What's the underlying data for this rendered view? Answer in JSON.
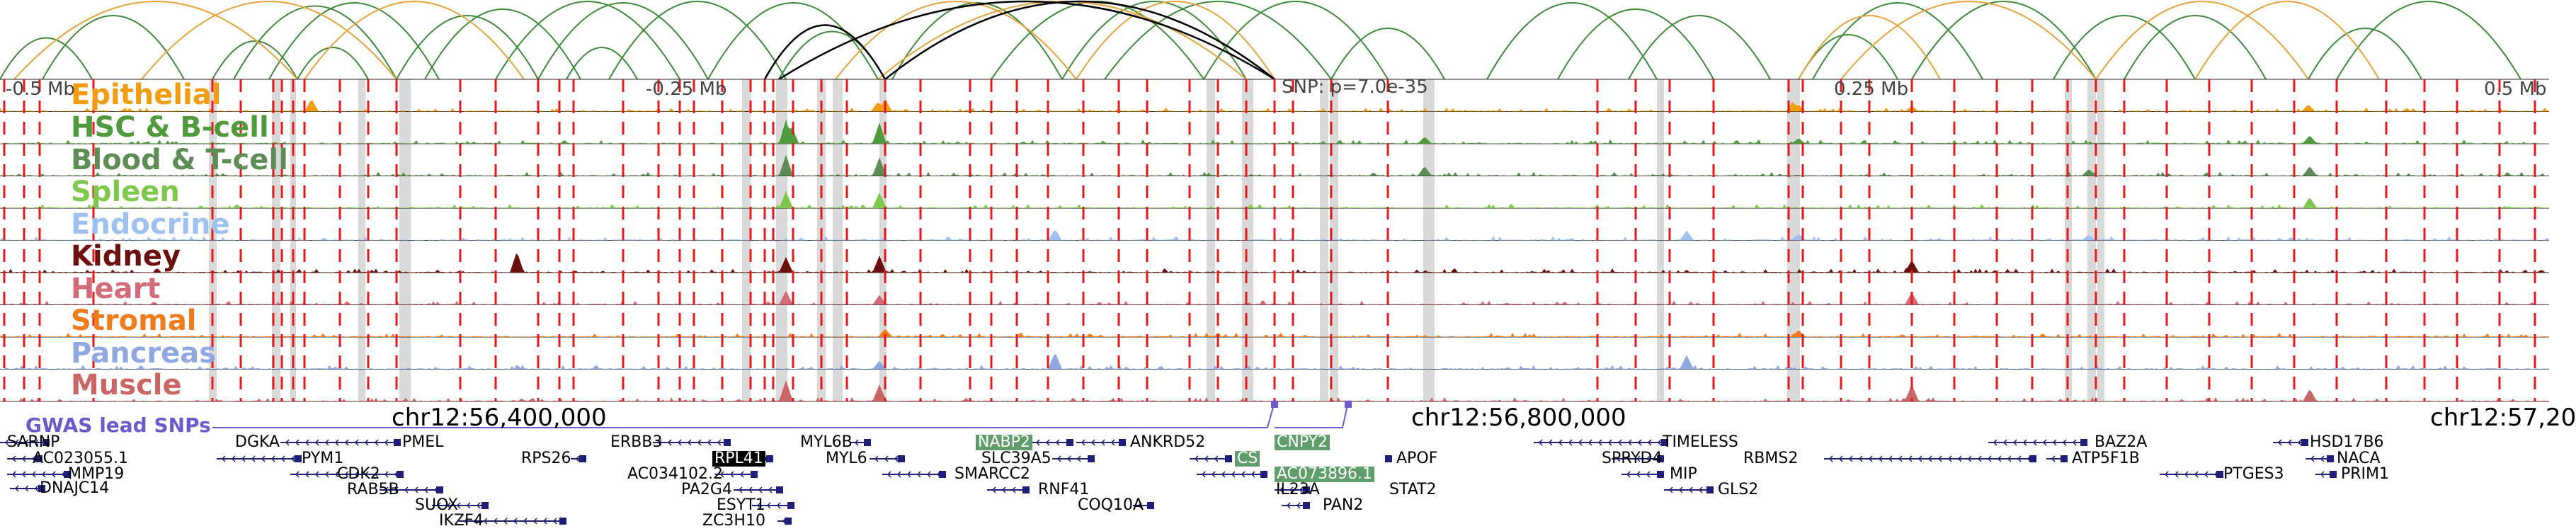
{
  "colors": {
    "epithelial": "#f39c12",
    "hsc_bcell": "#4f9a3a",
    "blood_tcell": "#5e8c55",
    "spleen": "#7ec84b",
    "endocrine": "#9ec1f0",
    "kidney": "#6b0f0f",
    "heart": "#d46b7a",
    "stromal": "#f07b1a",
    "pancreas": "#8fa8e0",
    "muscle": "#c96565",
    "snp_line": "#e31a1c",
    "highlight_band": "#d9d9d9",
    "gwas": "#6a5acd",
    "gene": "#1f1f7a",
    "arc_green": "#3d8a3a",
    "arc_orange": "#e8a23c",
    "arc_black": "#000000"
  },
  "tracks": [
    {
      "key": "epithelial",
      "label": "Epithelial"
    },
    {
      "key": "hsc_bcell",
      "label": "HSC & B-cell"
    },
    {
      "key": "blood_tcell",
      "label": "Blood & T-cell"
    },
    {
      "key": "spleen",
      "label": "Spleen"
    },
    {
      "key": "endocrine",
      "label": "Endocrine"
    },
    {
      "key": "kidney",
      "label": "Kidney"
    },
    {
      "key": "heart",
      "label": "Heart"
    },
    {
      "key": "stromal",
      "label": "Stromal"
    },
    {
      "key": "pancreas",
      "label": "Pancreas"
    },
    {
      "key": "muscle",
      "label": "Muscle"
    }
  ],
  "axis": {
    "left": "-0.5 Mb",
    "midleft": "-0.25 Mb",
    "snp": "SNP: p=7.0e-35",
    "midright": "0.25 Mb",
    "right": "0.5 Mb"
  },
  "coords": {
    "c1": "chr12:56,400,000",
    "c2": "chr12:56,800,000",
    "c3": "chr12:57,20"
  },
  "gwas_title": "GWAS lead SNPs",
  "genes": {
    "sarnp": "SARNP",
    "ac023055": "AC023055.1",
    "mmp19": "MMP19",
    "dnajc14": "DNAJC14",
    "dgka": "DGKA",
    "pmel": "PMEL",
    "pym1": "PYM1",
    "cdk2": "CDK2",
    "rab5b": "RAB5B",
    "suox": "SUOX",
    "ikzf4": "IKZF4",
    "rps26": "RPS26",
    "erbb3": "ERBB3",
    "rpl41": "RPL41",
    "ac034102": "AC034102.2",
    "pa2g4": "PA2G4",
    "esyt1": "ESYT1",
    "zc3h10": "ZC3H10",
    "myl6b": "MYL6B",
    "myl6": "MYL6",
    "nabp2": "NABP2",
    "slc39a5": "SLC39A5",
    "smarcc2": "SMARCC2",
    "rnf41": "RNF41",
    "coq10a": "COQ10A",
    "ankrd52": "ANKRD52",
    "cs": "CS",
    "cnpy2": "CNPY2",
    "ac073896": "AC073896.1",
    "il23a": "IL23A",
    "pan2": "PAN2",
    "apof": "APOF",
    "stat2": "STAT2",
    "timeless": "TIMELESS",
    "spryd4": "SPRYD4",
    "mip": "MIP",
    "gls2": "GLS2",
    "rbms2": "RBMS2",
    "baz2a": "BAZ2A",
    "atp5f1b": "ATP5F1B",
    "ptges3": "PTGES3",
    "hsd17b6": "HSD17B6",
    "naca": "NACA",
    "prim1": "PRIM1"
  }
}
